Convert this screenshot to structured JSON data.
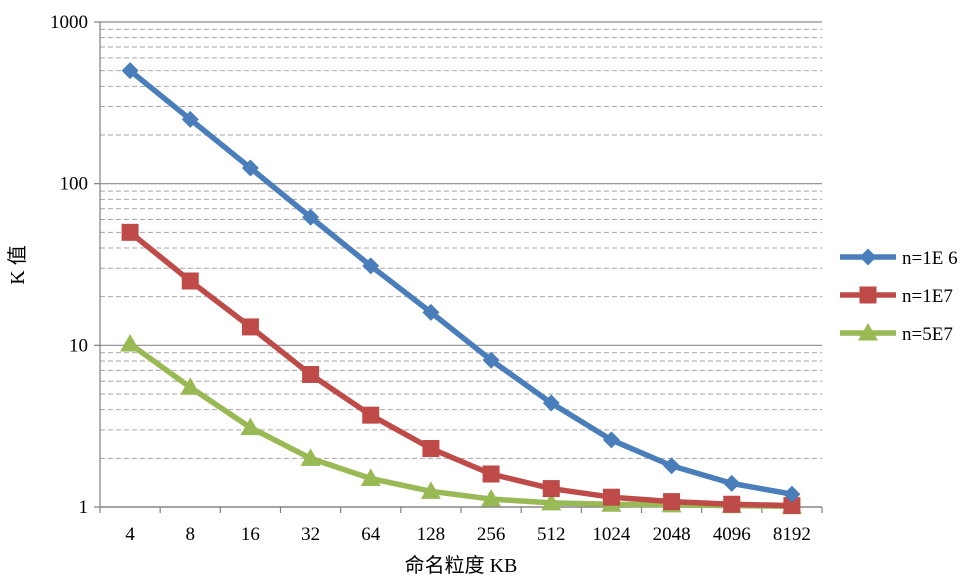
{
  "chart_data": {
    "type": "line",
    "title": "",
    "xlabel": "命名粒度 KB",
    "ylabel": "K 值",
    "yscale": "log",
    "ylim": [
      1,
      1000
    ],
    "yticks": [
      "1",
      "10",
      "100",
      "1000"
    ],
    "categories": [
      "4",
      "8",
      "16",
      "32",
      "64",
      "128",
      "256",
      "512",
      "1024",
      "2048",
      "4096",
      "8192"
    ],
    "grid": true,
    "legend_position": "right",
    "series": [
      {
        "name": "n=1E 6",
        "color": "#4a7ebb",
        "marker": "diamond",
        "values": [
          500,
          250,
          125,
          62,
          31,
          16,
          8.1,
          4.4,
          2.6,
          1.8,
          1.4,
          1.2
        ]
      },
      {
        "name": "n=1E7",
        "color": "#be4b48",
        "marker": "square",
        "values": [
          50,
          25,
          13,
          6.6,
          3.7,
          2.3,
          1.6,
          1.3,
          1.15,
          1.08,
          1.04,
          1.02
        ]
      },
      {
        "name": "n=5E7",
        "color": "#98b954",
        "marker": "triangle",
        "values": [
          10.2,
          5.5,
          3.1,
          2.0,
          1.5,
          1.25,
          1.12,
          1.06,
          1.04,
          1.03,
          1.02,
          1.01
        ]
      }
    ]
  }
}
